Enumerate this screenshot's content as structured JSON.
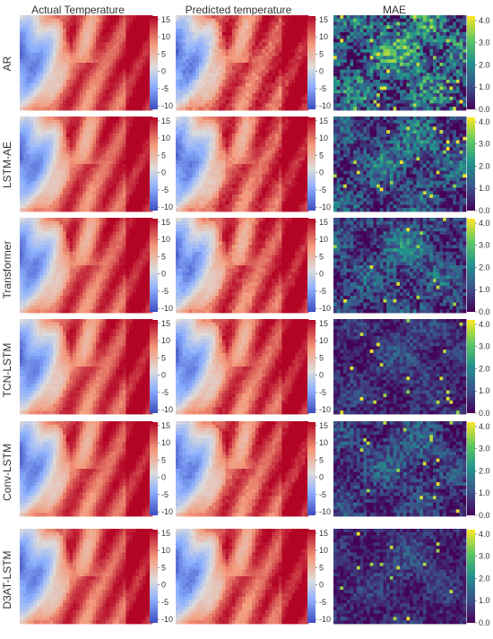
{
  "columns": [
    "Actual Temperature",
    "Predicted temperature",
    "MAE"
  ],
  "rows": [
    "AR",
    "LSTM-AE",
    "Transformer",
    "TCN-LSTM",
    "Conv-LSTM",
    "D3AT-LSTM"
  ],
  "temperature_colorbar": {
    "ticks": [
      "15",
      "10",
      "5",
      "0",
      "-5",
      "-10"
    ],
    "range": [
      -11,
      16
    ],
    "colormap": "RdBu_r",
    "colors": [
      "#3b4cc0",
      "#8db0fe",
      "#dddcdc",
      "#f49a7b",
      "#b40426"
    ]
  },
  "mae_colorbar": {
    "ticks": [
      "4.0",
      "3.0",
      "2.0",
      "1.0",
      "0.0"
    ],
    "range": [
      0,
      4.2
    ],
    "colormap": "viridis",
    "colors": [
      "#440154",
      "#3b528b",
      "#21918c",
      "#5ec962",
      "#fde725"
    ]
  },
  "chart_data": {
    "type": "heatmap",
    "grid": "6 x 3 panels",
    "row_labels": [
      "AR",
      "LSTM-AE",
      "Transformer",
      "TCN-LSTM",
      "Conv-LSTM",
      "D3AT-LSTM"
    ],
    "column_titles": [
      "Actual Temperature",
      "Predicted temperature",
      "MAE"
    ],
    "temperature_range": [
      -11,
      16
    ],
    "mae_range": [
      0,
      4.2
    ],
    "mae_intensity_by_model": [
      0.78,
      0.55,
      0.5,
      0.32,
      0.42,
      0.3
    ]
  }
}
